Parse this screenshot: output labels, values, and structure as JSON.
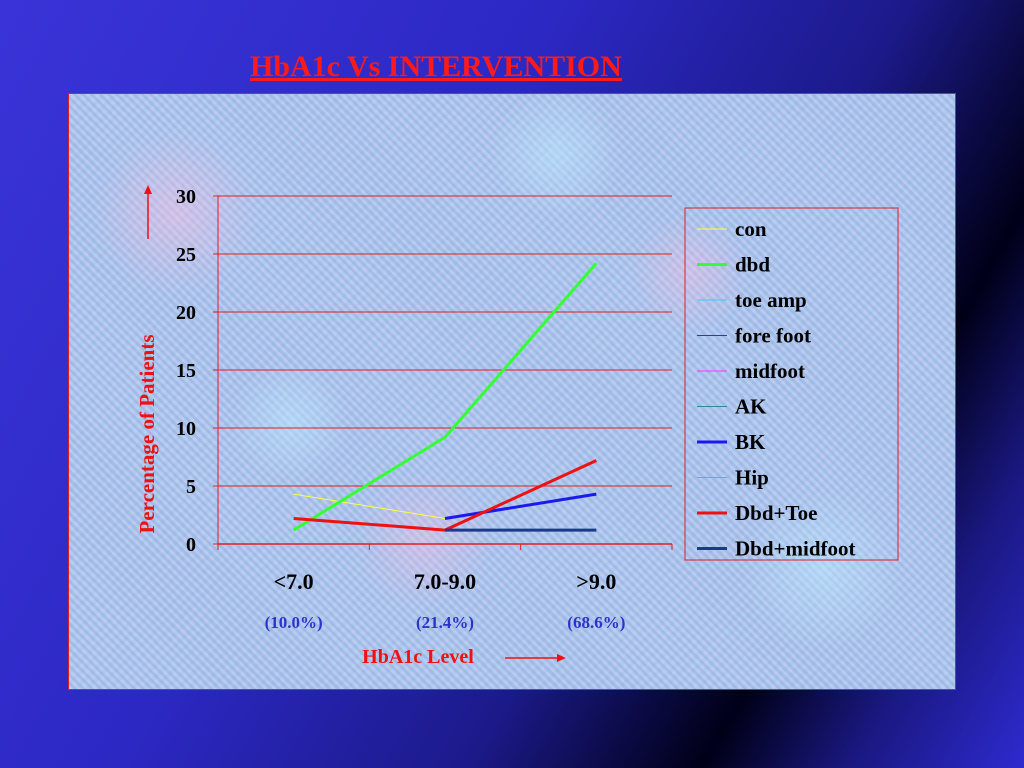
{
  "slide": {
    "title": "HbA1c Vs INTERVENTION"
  },
  "chart_data": {
    "type": "line",
    "title": "HbA1c Vs INTERVENTION",
    "xlabel": "HbA1c Level",
    "ylabel": "Percentage of Patients",
    "categories": [
      "<7.0",
      "7.0-9.0",
      ">9.0"
    ],
    "category_notes": [
      "(10.0%)",
      "(21.4%)",
      "(68.6%)"
    ],
    "ylim": [
      0,
      30
    ],
    "yticks": [
      0,
      5,
      10,
      15,
      20,
      25,
      30
    ],
    "grid": true,
    "legend_position": "right",
    "series": [
      {
        "name": "con",
        "color": "#ffff33",
        "width": 1,
        "values": [
          4.3,
          2.2,
          null
        ]
      },
      {
        "name": "dbd",
        "color": "#33ff33",
        "width": 3,
        "values": [
          1.2,
          9.2,
          24.2
        ]
      },
      {
        "name": "toe amp",
        "color": "#33ccff",
        "width": 1,
        "values": [
          null,
          null,
          null
        ]
      },
      {
        "name": "fore foot",
        "color": "#3333cc",
        "width": 1,
        "values": [
          null,
          null,
          null
        ]
      },
      {
        "name": "midfoot",
        "color": "#ff33ff",
        "width": 1,
        "values": [
          null,
          null,
          null
        ]
      },
      {
        "name": "AK",
        "color": "#338888",
        "width": 1,
        "values": [
          null,
          null,
          null
        ]
      },
      {
        "name": "BK",
        "color": "#1a1aee",
        "width": 3,
        "values": [
          null,
          2.2,
          4.3
        ]
      },
      {
        "name": "Hip",
        "color": "#33bbff",
        "width": 1,
        "values": [
          null,
          null,
          null
        ]
      },
      {
        "name": "Dbd+Toe",
        "color": "#ee1111",
        "width": 3,
        "values": [
          2.2,
          1.2,
          7.2
        ]
      },
      {
        "name": "Dbd+midfoot",
        "color": "#1a3a8a",
        "width": 3,
        "values": [
          null,
          1.2,
          1.2
        ]
      }
    ]
  }
}
